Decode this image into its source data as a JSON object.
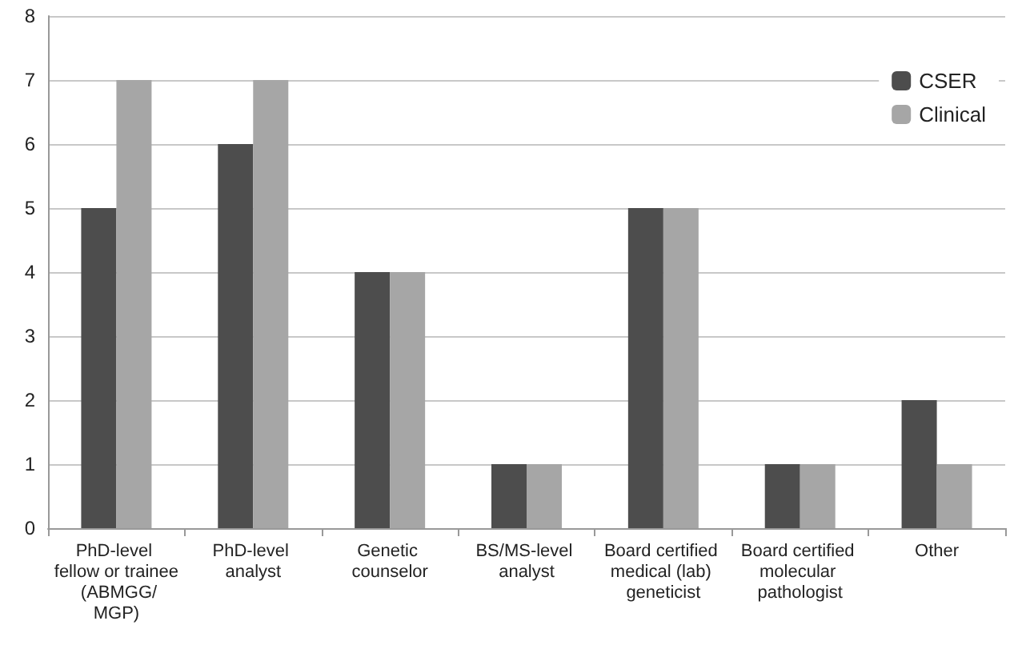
{
  "chart_data": {
    "type": "bar",
    "categories": [
      "PhD-level fellow or trainee (ABMGG/MGP)",
      "PhD-level analyst",
      "Genetic counselor",
      "BS/MS-level analyst",
      "Board certified medical (lab) geneticist",
      "Board certified molecular pathologist",
      "Other"
    ],
    "series": [
      {
        "name": "CSER",
        "color": "#4d4d4d",
        "values": [
          5,
          6,
          4,
          1,
          5,
          1,
          2
        ]
      },
      {
        "name": "Clinical",
        "color": "#a6a6a6",
        "values": [
          7,
          7,
          4,
          1,
          5,
          1,
          1
        ]
      }
    ],
    "ylim": [
      0,
      8
    ],
    "yticks": [
      0,
      1,
      2,
      3,
      4,
      5,
      6,
      7,
      8
    ],
    "grid": "y",
    "legend": "top right"
  }
}
